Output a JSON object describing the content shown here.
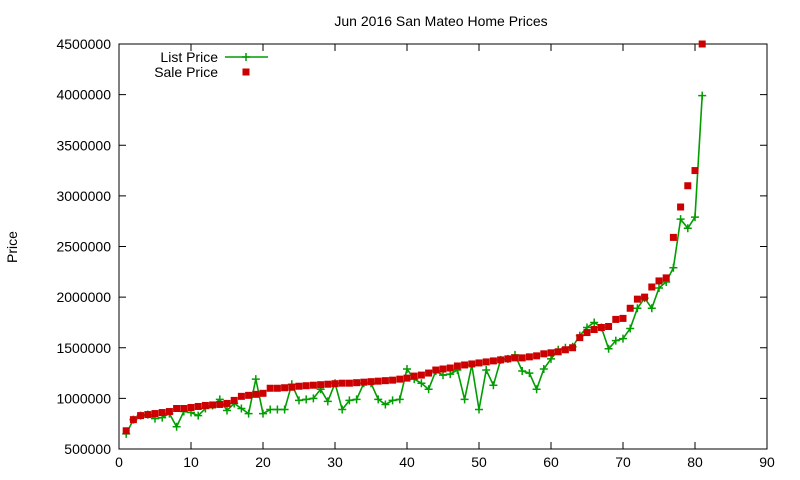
{
  "chart_data": {
    "type": "line",
    "title": "Jun 2016 San Mateo Home Prices",
    "xlabel": "",
    "ylabel": "Price",
    "xlim": [
      0,
      90
    ],
    "ylim": [
      500000,
      4500000
    ],
    "xticks": [
      0,
      10,
      20,
      30,
      40,
      50,
      60,
      70,
      80,
      90
    ],
    "yticks": [
      500000,
      1000000,
      1500000,
      2000000,
      2500000,
      3000000,
      3500000,
      4000000,
      4500000
    ],
    "grid": false,
    "legend": "top-left",
    "series": [
      {
        "name": "List Price",
        "style": "line-plus",
        "color": "#009e00",
        "x": [
          1,
          2,
          3,
          4,
          5,
          6,
          7,
          8,
          9,
          10,
          11,
          12,
          13,
          14,
          15,
          16,
          17,
          18,
          19,
          20,
          21,
          22,
          23,
          24,
          25,
          26,
          27,
          28,
          29,
          30,
          31,
          32,
          33,
          34,
          35,
          36,
          37,
          38,
          39,
          40,
          41,
          42,
          43,
          44,
          45,
          46,
          47,
          48,
          49,
          50,
          51,
          52,
          53,
          54,
          55,
          56,
          57,
          58,
          59,
          60,
          61,
          62,
          63,
          64,
          65,
          66,
          67,
          68,
          69,
          70,
          71,
          72,
          73,
          74,
          75,
          76,
          77,
          78,
          79,
          80,
          81
        ],
        "values": [
          650000,
          790000,
          830000,
          840000,
          800000,
          810000,
          850000,
          720000,
          870000,
          860000,
          830000,
          900000,
          930000,
          990000,
          880000,
          950000,
          900000,
          850000,
          1190000,
          850000,
          890000,
          890000,
          890000,
          1140000,
          980000,
          990000,
          1000000,
          1090000,
          970000,
          1150000,
          890000,
          980000,
          990000,
          1150000,
          1150000,
          990000,
          940000,
          980000,
          990000,
          1290000,
          1190000,
          1150000,
          1090000,
          1270000,
          1230000,
          1240000,
          1280000,
          990000,
          1330000,
          890000,
          1280000,
          1130000,
          1380000,
          1390000,
          1430000,
          1270000,
          1250000,
          1090000,
          1290000,
          1390000,
          1480000,
          1500000,
          1510000,
          1620000,
          1700000,
          1750000,
          1700000,
          1490000,
          1570000,
          1590000,
          1690000,
          1890000,
          1990000,
          1890000,
          2090000,
          2150000,
          2290000,
          2770000,
          2680000,
          2790000,
          3990000
        ]
      },
      {
        "name": "Sale Price",
        "style": "points-square",
        "color": "#cc0000",
        "x": [
          1,
          2,
          3,
          4,
          5,
          6,
          7,
          8,
          9,
          10,
          11,
          12,
          13,
          14,
          15,
          16,
          17,
          18,
          19,
          20,
          21,
          22,
          23,
          24,
          25,
          26,
          27,
          28,
          29,
          30,
          31,
          32,
          33,
          34,
          35,
          36,
          37,
          38,
          39,
          40,
          41,
          42,
          43,
          44,
          45,
          46,
          47,
          48,
          49,
          50,
          51,
          52,
          53,
          54,
          55,
          56,
          57,
          58,
          59,
          60,
          61,
          62,
          63,
          64,
          65,
          66,
          67,
          68,
          69,
          70,
          71,
          72,
          73,
          74,
          75,
          76,
          77,
          78,
          79,
          80,
          81
        ],
        "values": [
          680000,
          790000,
          830000,
          840000,
          850000,
          860000,
          870000,
          900000,
          900000,
          910000,
          920000,
          930000,
          935000,
          940000,
          950000,
          980000,
          1020000,
          1030000,
          1040000,
          1050000,
          1100000,
          1100000,
          1105000,
          1110000,
          1120000,
          1125000,
          1130000,
          1135000,
          1140000,
          1145000,
          1150000,
          1150000,
          1155000,
          1160000,
          1165000,
          1170000,
          1175000,
          1180000,
          1190000,
          1200000,
          1220000,
          1230000,
          1250000,
          1280000,
          1290000,
          1300000,
          1320000,
          1330000,
          1340000,
          1350000,
          1360000,
          1370000,
          1380000,
          1390000,
          1400000,
          1400000,
          1410000,
          1420000,
          1440000,
          1450000,
          1460000,
          1480000,
          1500000,
          1600000,
          1650000,
          1680000,
          1700000,
          1710000,
          1780000,
          1790000,
          1890000,
          1980000,
          2000000,
          2100000,
          2160000,
          2190000,
          2590000,
          2890000,
          3100000,
          3250000,
          4500000
        ]
      }
    ]
  }
}
